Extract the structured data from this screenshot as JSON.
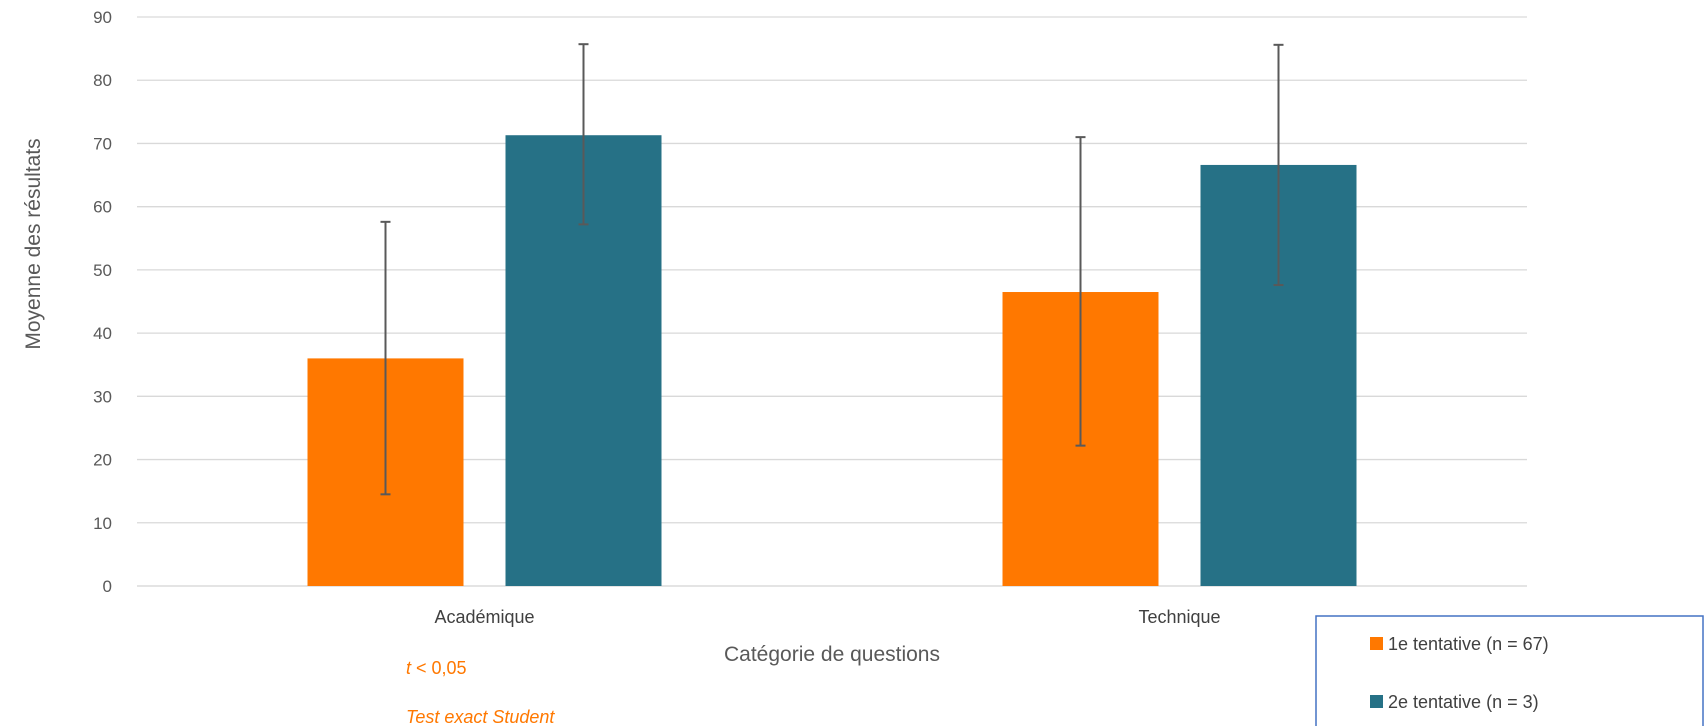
{
  "chart_data": {
    "type": "bar",
    "categories": [
      "Académique",
      "Technique"
    ],
    "series": [
      {
        "name": "1e tentative (n = 67)",
        "values": [
          36,
          46.5
        ],
        "error_low": [
          14.5,
          22.2
        ],
        "error_high": [
          57.6,
          71.0
        ],
        "color": "#FF7800"
      },
      {
        "name": "2e tentative (n = 3)",
        "values": [
          71.3,
          66.6
        ],
        "error_low": [
          57.2,
          47.6
        ],
        "error_high": [
          85.7,
          85.6
        ],
        "color": "#267186"
      }
    ],
    "xlabel": "Catégorie de questions",
    "ylabel": "Moyenne des résultats",
    "ylim": [
      0,
      90
    ],
    "yticks": [
      0,
      10,
      20,
      30,
      40,
      50,
      60,
      70,
      80,
      90
    ],
    "grid": true,
    "legend_position": "bottom-right",
    "annotations": [
      {
        "text_prefix": "t",
        "text_suffix": " < 0,05",
        "color": "#FF7800"
      },
      {
        "text": "Test exact Student",
        "color": "#FF7800"
      }
    ],
    "colors": {
      "gridline": "#d9d9d9",
      "error_bar": "#595959",
      "legend_border": "#4472C4"
    }
  }
}
